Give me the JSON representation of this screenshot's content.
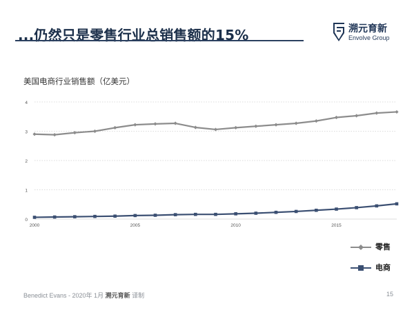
{
  "slide": {
    "title": "...仍然只是零售行业总销售额的15%",
    "page_number": "15",
    "footer": {
      "source": "Benedict Evans - 2020年 1月 ",
      "brand": "溯元育新",
      "suffix": " 译制"
    },
    "logo": {
      "cn": "溯元育新",
      "en": "Envolve Group",
      "icon": "envolve-logo-icon"
    }
  },
  "colors": {
    "retail": "#8c8c8c",
    "ecommerce": "#3b4f72",
    "title": "#1b2f4a",
    "grid": "#d0d0d0"
  },
  "chart_data": {
    "type": "line",
    "title": "美国电商行业销售额（亿美元）",
    "xlabel": "",
    "ylabel": "",
    "xlim": [
      2000,
      2018
    ],
    "ylim": [
      0,
      4
    ],
    "x_ticks": [
      "2000",
      "2005",
      "2010",
      "2015"
    ],
    "y_ticks": [
      "0",
      "1",
      "2",
      "3",
      "4"
    ],
    "grid": "horizontal dotted",
    "legend_position": "bottom-right",
    "x": [
      2000,
      2001,
      2002,
      2003,
      2004,
      2005,
      2006,
      2007,
      2008,
      2009,
      2010,
      2011,
      2012,
      2013,
      2014,
      2015,
      2016,
      2017,
      2018
    ],
    "series": [
      {
        "name": "零售",
        "marker": "diamond",
        "values": [
          2.9,
          2.88,
          2.95,
          3.0,
          3.12,
          3.22,
          3.25,
          3.27,
          3.13,
          3.06,
          3.12,
          3.17,
          3.22,
          3.27,
          3.35,
          3.47,
          3.53,
          3.62,
          3.66
        ]
      },
      {
        "name": "电商",
        "marker": "square",
        "values": [
          0.06,
          0.07,
          0.08,
          0.09,
          0.1,
          0.12,
          0.13,
          0.15,
          0.16,
          0.16,
          0.18,
          0.2,
          0.23,
          0.26,
          0.3,
          0.34,
          0.39,
          0.45,
          0.52
        ]
      }
    ]
  }
}
